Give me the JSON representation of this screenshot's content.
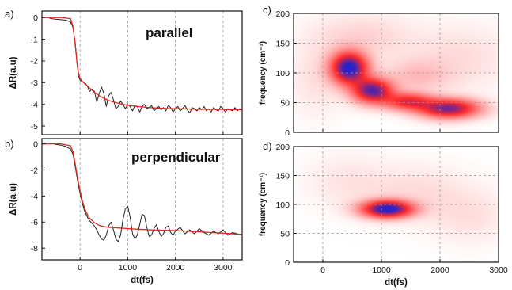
{
  "chart_data": [
    {
      "id": "a",
      "panel_label": "a)",
      "type": "line",
      "annotation": "parallel",
      "ylabel": "ΔR(a.u)",
      "xlabel": "",
      "xlim": [
        -800,
        3400
      ],
      "ylim": [
        -5.4,
        0.3
      ],
      "xticks": [
        0,
        1000,
        2000,
        3000
      ],
      "xticklabels": [
        "",
        "",
        "",
        ""
      ],
      "yticks": [
        0,
        -1,
        -2,
        -3,
        -4,
        -5
      ],
      "yticklabels": [
        "0",
        "-1",
        "-2",
        "-3",
        "-4",
        "-5"
      ],
      "grid": "vertical-dashed",
      "series": [
        {
          "role": "data",
          "color": "#222222",
          "x": [
            -800,
            -700,
            -600,
            -500,
            -400,
            -300,
            -200,
            -150,
            -100,
            -60,
            -30,
            0,
            40,
            80,
            120,
            160,
            200,
            250,
            300,
            350,
            400,
            450,
            500,
            550,
            600,
            650,
            700,
            750,
            800,
            850,
            900,
            950,
            1000,
            1050,
            1100,
            1150,
            1200,
            1250,
            1300,
            1350,
            1400,
            1450,
            1500,
            1550,
            1600,
            1650,
            1700,
            1750,
            1800,
            1850,
            1900,
            1950,
            2000,
            2050,
            2100,
            2150,
            2200,
            2250,
            2300,
            2350,
            2400,
            2450,
            2500,
            2550,
            2600,
            2650,
            2700,
            2750,
            2800,
            2850,
            2900,
            2950,
            3000,
            3050,
            3100,
            3150,
            3200,
            3250,
            3300,
            3350,
            3400
          ],
          "y": [
            0,
            0.02,
            -0.05,
            -0.08,
            -0.1,
            -0.12,
            -0.2,
            -0.45,
            -1.2,
            -2.2,
            -2.7,
            -2.9,
            -2.95,
            -3.0,
            -3.05,
            -3.2,
            -3.4,
            -3.3,
            -3.4,
            -3.9,
            -3.5,
            -3.2,
            -3.5,
            -4.1,
            -3.6,
            -3.45,
            -3.8,
            -4.2,
            -4.1,
            -3.85,
            -4.0,
            -4.2,
            -4.0,
            -4.1,
            -4.3,
            -4.05,
            -4.1,
            -4.35,
            -4.1,
            -4.0,
            -4.2,
            -4.15,
            -4.05,
            -4.3,
            -4.2,
            -4.1,
            -4.25,
            -4.15,
            -4.3,
            -4.05,
            -4.15,
            -4.35,
            -4.2,
            -4.1,
            -4.3,
            -4.2,
            -4.05,
            -4.25,
            -4.4,
            -4.15,
            -4.2,
            -4.3,
            -4.15,
            -4.25,
            -4.1,
            -4.3,
            -4.2,
            -4.35,
            -4.15,
            -4.25,
            -4.3,
            -4.1,
            -4.2,
            -4.35,
            -4.2,
            -4.25,
            -4.3,
            -4.15,
            -4.3,
            -4.2,
            -4.25
          ]
        },
        {
          "role": "fit",
          "color": "#e0261e",
          "x": [
            -800,
            -400,
            -200,
            -150,
            -100,
            -60,
            -30,
            0,
            50,
            100,
            150,
            200,
            300,
            400,
            500,
            600,
            700,
            800,
            900,
            1000,
            1200,
            1400,
            1600,
            1800,
            2000,
            2400,
            2800,
            3200,
            3400
          ],
          "y": [
            0,
            0,
            -0.05,
            -0.4,
            -1.3,
            -2.2,
            -2.6,
            -2.8,
            -2.95,
            -3.05,
            -3.15,
            -3.25,
            -3.45,
            -3.6,
            -3.72,
            -3.82,
            -3.89,
            -3.95,
            -4.0,
            -4.04,
            -4.1,
            -4.14,
            -4.17,
            -4.19,
            -4.2,
            -4.22,
            -4.23,
            -4.24,
            -4.24
          ]
        }
      ]
    },
    {
      "id": "b",
      "panel_label": "b)",
      "type": "line",
      "annotation": "perpendicular",
      "ylabel": "ΔR(a.u)",
      "xlabel": "dt(fs)",
      "xlim": [
        -800,
        3400
      ],
      "ylim": [
        -8.9,
        0.4
      ],
      "xticks": [
        0,
        1000,
        2000,
        3000
      ],
      "xticklabels": [
        "0",
        "1000",
        "2000",
        "3000"
      ],
      "yticks": [
        0,
        -2,
        -4,
        -6,
        -8
      ],
      "yticklabels": [
        "0",
        "-2",
        "-4",
        "-6",
        "-8"
      ],
      "grid": "vertical-dashed",
      "series": [
        {
          "role": "data",
          "color": "#222222",
          "x": [
            -800,
            -700,
            -600,
            -500,
            -400,
            -300,
            -200,
            -150,
            -100,
            -50,
            0,
            50,
            100,
            150,
            200,
            250,
            300,
            350,
            400,
            450,
            500,
            550,
            600,
            650,
            700,
            750,
            800,
            850,
            900,
            950,
            1000,
            1050,
            1100,
            1150,
            1200,
            1250,
            1300,
            1350,
            1400,
            1450,
            1500,
            1550,
            1600,
            1650,
            1700,
            1750,
            1800,
            1850,
            1900,
            1950,
            2000,
            2100,
            2200,
            2300,
            2400,
            2500,
            2600,
            2700,
            2800,
            2900,
            3000,
            3100,
            3200,
            3300,
            3400
          ],
          "y": [
            0,
            0,
            0.05,
            -0.05,
            -0.1,
            -0.2,
            -0.4,
            -0.8,
            -1.8,
            -2.9,
            -3.8,
            -4.6,
            -5.2,
            -5.6,
            -5.9,
            -6.1,
            -6.3,
            -6.6,
            -7.0,
            -7.3,
            -7.4,
            -7.0,
            -6.3,
            -6.0,
            -6.6,
            -7.3,
            -7.5,
            -7.0,
            -5.8,
            -5.0,
            -4.8,
            -5.6,
            -6.9,
            -7.3,
            -7.0,
            -6.2,
            -5.4,
            -5.5,
            -6.4,
            -7.1,
            -7.0,
            -6.5,
            -6.2,
            -6.7,
            -7.1,
            -6.9,
            -6.4,
            -6.3,
            -6.8,
            -7.0,
            -6.7,
            -6.4,
            -6.9,
            -6.6,
            -6.9,
            -6.5,
            -6.8,
            -7.0,
            -6.7,
            -6.9,
            -6.6,
            -7.0,
            -6.8,
            -6.9,
            -7.0
          ]
        },
        {
          "role": "fit",
          "color": "#e0261e",
          "x": [
            -800,
            -400,
            -200,
            -150,
            -100,
            -50,
            0,
            50,
            100,
            150,
            200,
            300,
            400,
            500,
            600,
            800,
            1000,
            1200,
            1500,
            2000,
            2500,
            3000,
            3400
          ],
          "y": [
            0,
            0,
            -0.15,
            -0.6,
            -1.6,
            -2.7,
            -3.6,
            -4.4,
            -5.0,
            -5.4,
            -5.7,
            -6.05,
            -6.25,
            -6.35,
            -6.4,
            -6.45,
            -6.5,
            -6.55,
            -6.6,
            -6.65,
            -6.75,
            -6.85,
            -6.95
          ]
        }
      ]
    },
    {
      "id": "c",
      "panel_label": "c)",
      "type": "heatmap",
      "ylabel": "frequency (cm⁻¹)",
      "xlabel": "",
      "xlim": [
        -500,
        3000
      ],
      "ylim": [
        0,
        200
      ],
      "xticks": [
        0,
        1000,
        2000,
        3000
      ],
      "xticklabels": [
        "",
        "",
        "",
        ""
      ],
      "yticks": [
        0,
        50,
        100,
        150,
        200
      ],
      "yticklabels": [
        "0",
        "50",
        "100",
        "150",
        "200"
      ],
      "grid": "dashed",
      "colormap": [
        "#ffffff",
        "#ff2a2a",
        "#2a22c8"
      ],
      "blobs": [
        {
          "x": 450,
          "y": 108,
          "sx": 210,
          "sy": 18,
          "amp": 1.0
        },
        {
          "x": 850,
          "y": 70,
          "sx": 230,
          "sy": 14,
          "amp": 0.85
        },
        {
          "x": 1450,
          "y": 52,
          "sx": 280,
          "sy": 10,
          "amp": 0.55
        },
        {
          "x": 2150,
          "y": 40,
          "sx": 350,
          "sy": 11,
          "amp": 0.8
        },
        {
          "x": 1600,
          "y": 95,
          "sx": 380,
          "sy": 18,
          "amp": 0.12
        },
        {
          "x": 650,
          "y": 160,
          "sx": 550,
          "sy": 25,
          "amp": 0.08
        },
        {
          "x": 2300,
          "y": 125,
          "sx": 600,
          "sy": 35,
          "amp": 0.06
        },
        {
          "x": -100,
          "y": 90,
          "sx": 300,
          "sy": 40,
          "amp": 0.05
        }
      ]
    },
    {
      "id": "d",
      "panel_label": "d)",
      "type": "heatmap",
      "ylabel": "frequency (cm⁻¹)",
      "xlabel": "dt(fs)",
      "xlim": [
        -500,
        3000
      ],
      "ylim": [
        0,
        200
      ],
      "xticks": [
        0,
        1000,
        2000,
        3000
      ],
      "xticklabels": [
        "0",
        "1000",
        "2000",
        "3000"
      ],
      "yticks": [
        0,
        50,
        100,
        150,
        200
      ],
      "yticklabels": [
        "0",
        "50",
        "100",
        "150",
        "200"
      ],
      "grid": "dashed",
      "colormap": [
        "#ffffff",
        "#ff2a2a",
        "#2a22c8"
      ],
      "blobs": [
        {
          "x": 1100,
          "y": 92,
          "sx": 290,
          "sy": 10,
          "amp": 1.0
        },
        {
          "x": 1550,
          "y": 120,
          "sx": 600,
          "sy": 30,
          "amp": 0.06
        },
        {
          "x": 2500,
          "y": 80,
          "sx": 450,
          "sy": 30,
          "amp": 0.05
        },
        {
          "x": 400,
          "y": 140,
          "sx": 450,
          "sy": 30,
          "amp": 0.04
        }
      ]
    }
  ]
}
